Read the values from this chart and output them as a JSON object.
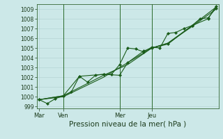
{
  "background_color": "#cce8e8",
  "grid_color": "#b0d0d0",
  "line_color": "#1a5c1a",
  "marker_color": "#1a5c1a",
  "title": "Pression niveau de la mer( hPa )",
  "xlabel_ticks": [
    "Mar",
    "Ven",
    "Mer",
    "Jeu"
  ],
  "xlabel_tick_x": [
    0.0,
    0.214,
    0.714,
    1.0
  ],
  "ylim": [
    998.8,
    1009.5
  ],
  "ytick_vals": [
    999,
    1000,
    1001,
    1002,
    1003,
    1004,
    1005,
    1006,
    1007,
    1008,
    1009
  ],
  "series1_x": [
    0,
    1,
    2,
    3,
    4,
    5,
    6,
    7,
    8,
    9,
    10,
    11,
    12,
    13,
    14,
    15,
    16,
    17,
    18,
    19,
    20,
    21,
    22
  ],
  "series1_y": [
    999.7,
    999.3,
    999.8,
    1000.1,
    1000.5,
    1002.1,
    1001.5,
    1002.2,
    1002.3,
    1002.3,
    1003.3,
    1005.0,
    1004.9,
    1004.6,
    1005.1,
    1005.0,
    1006.5,
    1006.6,
    1007.0,
    1007.3,
    1008.0,
    1008.1,
    1009.1
  ],
  "series2_x": [
    0,
    3,
    5,
    8,
    10,
    11,
    13,
    14,
    16,
    19,
    21,
    22
  ],
  "series2_y": [
    999.7,
    1000.1,
    1002.1,
    1002.3,
    1002.2,
    1003.5,
    1004.7,
    1005.0,
    1005.4,
    1007.3,
    1008.0,
    1009.3
  ],
  "series3_x": [
    0,
    3,
    8,
    11,
    14,
    16,
    19,
    22
  ],
  "series3_y": [
    999.7,
    1000.1,
    1002.2,
    1003.3,
    1005.0,
    1005.5,
    1007.2,
    1009.0
  ],
  "series4_x": [
    0,
    3,
    8,
    11,
    14,
    16,
    19,
    22
  ],
  "series4_y": [
    999.7,
    1000.0,
    1002.0,
    1003.5,
    1005.0,
    1005.5,
    1007.3,
    1009.2
  ],
  "vline_x": [
    3,
    10,
    14
  ],
  "vline_color": "#2a6a2a",
  "spine_color": "#336633",
  "tick_color": "#1a3a1a",
  "title_color": "#1a3a1a",
  "title_fontsize": 7.5,
  "ytick_fontsize": 5.5,
  "xtick_fontsize": 6.0,
  "xlim": [
    -0.3,
    22.3
  ],
  "marker_size": 2.2,
  "line_width": 0.8
}
